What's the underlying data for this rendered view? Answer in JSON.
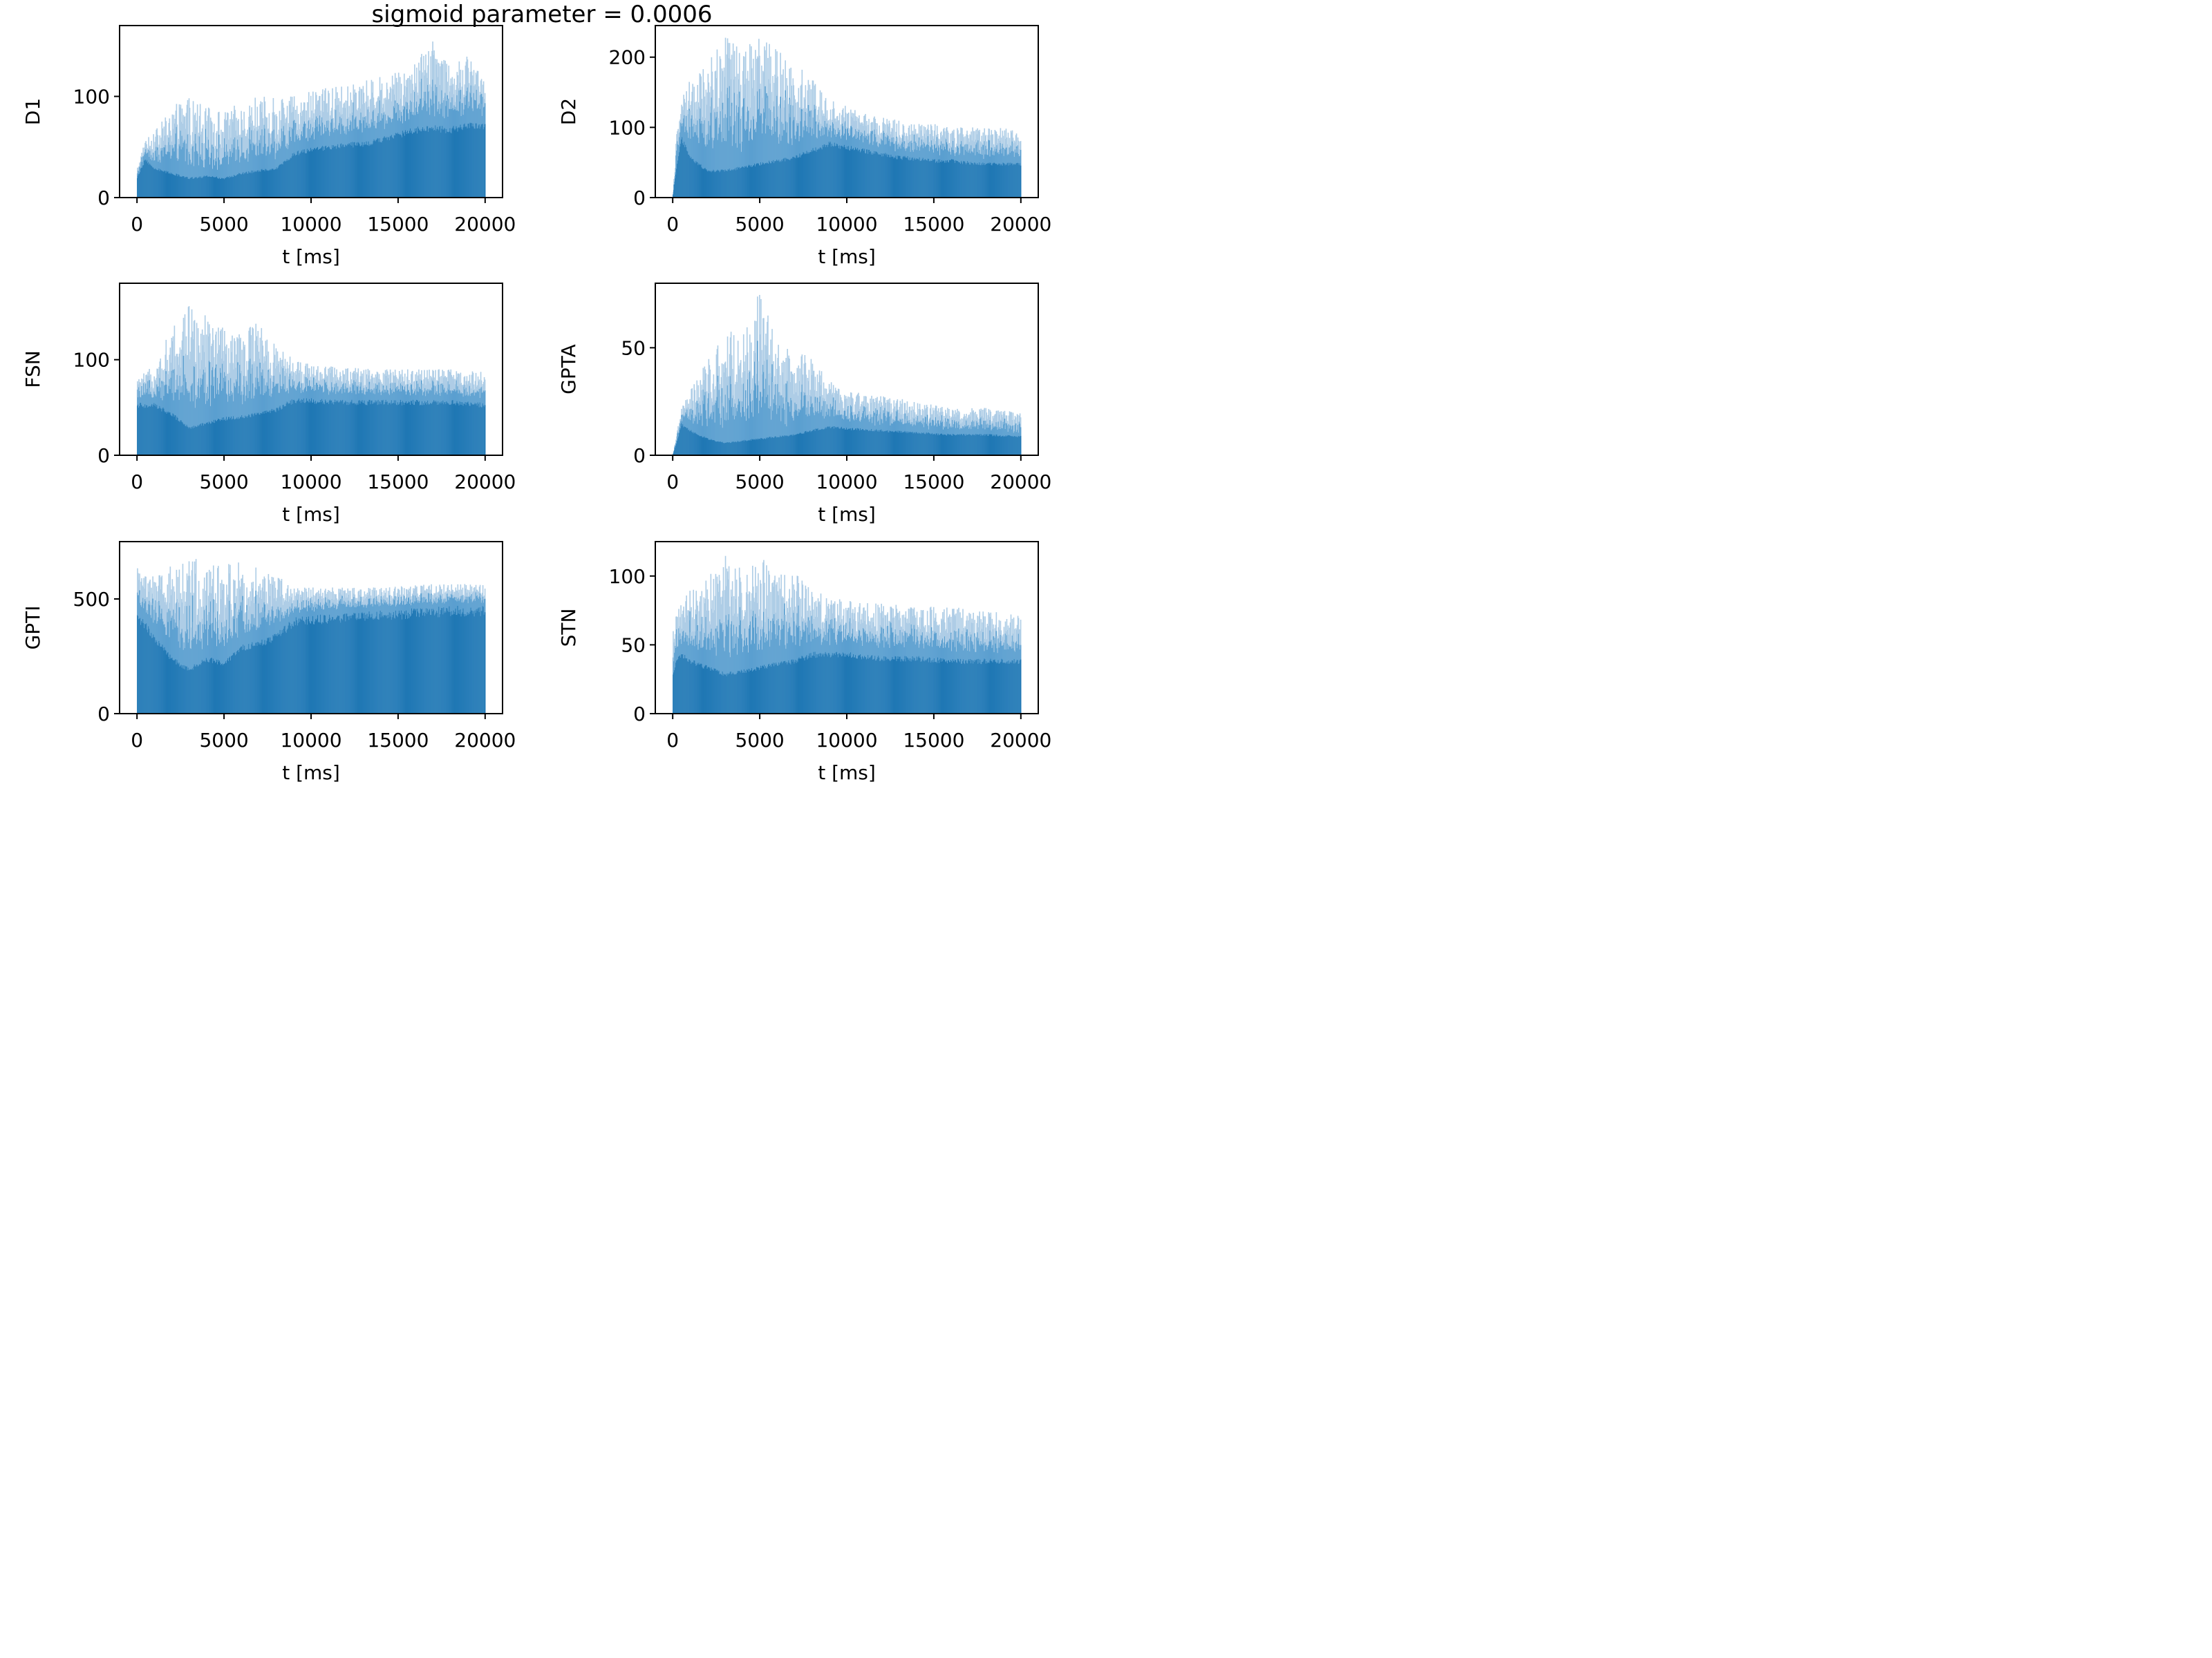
{
  "figure": {
    "title": "sigmoid parameter = 0.0006",
    "bar_color": "#1f77b4",
    "bar_light_color": "#aecde6",
    "bar_mid_color": "#5a9fd0"
  },
  "chart_data": [
    {
      "type": "histogram",
      "ylabel": "D1",
      "xlabel": "t [ms]",
      "xlim": [
        -1000,
        21000
      ],
      "ylim": [
        0,
        170
      ],
      "xticks": [
        0,
        5000,
        10000,
        15000,
        20000
      ],
      "xtick_labels": [
        "0",
        "5000",
        "10000",
        "15000",
        "20000"
      ],
      "yticks": [
        0,
        100
      ],
      "ytick_labels": [
        "0",
        "100"
      ],
      "envelope": {
        "t": [
          0,
          500,
          1000,
          2000,
          3000,
          4000,
          5000,
          6000,
          7000,
          8000,
          9000,
          10000,
          11000,
          12000,
          13000,
          14000,
          15000,
          16000,
          17000,
          18000,
          19000,
          20000
        ],
        "base": [
          20,
          40,
          30,
          25,
          20,
          22,
          20,
          25,
          28,
          30,
          45,
          50,
          52,
          55,
          55,
          60,
          65,
          70,
          72,
          70,
          75,
          75
        ],
        "peak": [
          30,
          60,
          65,
          90,
          100,
          90,
          85,
          95,
          100,
          100,
          100,
          105,
          110,
          110,
          115,
          120,
          125,
          135,
          160,
          130,
          140,
          120
        ]
      }
    },
    {
      "type": "histogram",
      "ylabel": "D2",
      "xlabel": "t [ms]",
      "xlim": [
        -1000,
        21000
      ],
      "ylim": [
        0,
        245
      ],
      "xticks": [
        0,
        5000,
        10000,
        15000,
        20000
      ],
      "xtick_labels": [
        "0",
        "5000",
        "10000",
        "15000",
        "20000"
      ],
      "yticks": [
        0,
        100,
        200
      ],
      "ytick_labels": [
        "0",
        "100",
        "200"
      ],
      "envelope": {
        "t": [
          0,
          200,
          500,
          1000,
          2000,
          3000,
          4000,
          5000,
          6000,
          7000,
          8000,
          9000,
          10000,
          11000,
          12000,
          13000,
          14000,
          15000,
          16000,
          17000,
          18000,
          19000,
          20000
        ],
        "base": [
          0,
          40,
          90,
          60,
          40,
          40,
          45,
          50,
          55,
          60,
          70,
          80,
          75,
          70,
          65,
          60,
          58,
          55,
          55,
          52,
          50,
          50,
          50
        ],
        "peak": [
          0,
          90,
          140,
          170,
          200,
          230,
          215,
          230,
          210,
          195,
          170,
          140,
          130,
          120,
          115,
          110,
          105,
          105,
          100,
          100,
          100,
          100,
          95
        ]
      }
    },
    {
      "type": "histogram",
      "ylabel": "FSN",
      "xlabel": "t [ms]",
      "xlim": [
        -1000,
        21000
      ],
      "ylim": [
        0,
        180
      ],
      "xticks": [
        0,
        5000,
        10000,
        15000,
        20000
      ],
      "xtick_labels": [
        "0",
        "5000",
        "10000",
        "15000",
        "20000"
      ],
      "yticks": [
        0,
        100
      ],
      "ytick_labels": [
        "0",
        "100"
      ],
      "envelope": {
        "t": [
          0,
          1000,
          2000,
          3000,
          4000,
          5000,
          6000,
          7000,
          8000,
          9000,
          10000,
          12000,
          14000,
          16000,
          18000,
          20000
        ],
        "base": [
          55,
          55,
          45,
          30,
          35,
          40,
          42,
          45,
          50,
          60,
          60,
          58,
          58,
          58,
          58,
          55
        ],
        "peak": [
          80,
          95,
          135,
          160,
          145,
          135,
          130,
          140,
          115,
          100,
          95,
          92,
          90,
          90,
          90,
          88
        ]
      }
    },
    {
      "type": "histogram",
      "ylabel": "GPTA",
      "xlabel": "t [ms]",
      "xlim": [
        -1000,
        21000
      ],
      "ylim": [
        0,
        80
      ],
      "xticks": [
        0,
        5000,
        10000,
        15000,
        20000
      ],
      "xtick_labels": [
        "0",
        "5000",
        "10000",
        "15000",
        "20000"
      ],
      "yticks": [
        0,
        50
      ],
      "ytick_labels": [
        "0",
        "50"
      ],
      "envelope": {
        "t": [
          0,
          200,
          500,
          1000,
          2000,
          3000,
          4000,
          5000,
          6000,
          7000,
          8000,
          9000,
          10000,
          12000,
          14000,
          16000,
          18000,
          20000
        ],
        "base": [
          0,
          5,
          15,
          12,
          8,
          6,
          7,
          8,
          9,
          10,
          12,
          14,
          13,
          12,
          11,
          10,
          10,
          9
        ],
        "peak": [
          0,
          10,
          22,
          30,
          45,
          60,
          55,
          77,
          55,
          50,
          45,
          35,
          30,
          28,
          25,
          22,
          22,
          20
        ]
      }
    },
    {
      "type": "histogram",
      "ylabel": "GPTI",
      "xlabel": "t [ms]",
      "xlim": [
        -1000,
        21000
      ],
      "ylim": [
        0,
        750
      ],
      "xticks": [
        0,
        5000,
        10000,
        15000,
        20000
      ],
      "xtick_labels": [
        "0",
        "5000",
        "10000",
        "15000",
        "20000"
      ],
      "yticks": [
        0,
        500
      ],
      "ytick_labels": [
        "0",
        "500"
      ],
      "envelope": {
        "t": [
          0,
          500,
          1000,
          2000,
          3000,
          4000,
          5000,
          6000,
          7000,
          8000,
          9000,
          10000,
          12000,
          14000,
          16000,
          18000,
          20000
        ],
        "base": [
          450,
          400,
          350,
          250,
          200,
          250,
          230,
          300,
          320,
          350,
          420,
          430,
          440,
          450,
          460,
          470,
          470
        ],
        "peak": [
          650,
          600,
          600,
          690,
          680,
          670,
          670,
          660,
          640,
          600,
          560,
          550,
          550,
          550,
          560,
          570,
          560
        ]
      }
    },
    {
      "type": "histogram",
      "ylabel": "STN",
      "xlabel": "t [ms]",
      "xlim": [
        -1000,
        21000
      ],
      "ylim": [
        0,
        125
      ],
      "xticks": [
        0,
        5000,
        10000,
        15000,
        20000
      ],
      "xtick_labels": [
        "0",
        "5000",
        "10000",
        "15000",
        "20000"
      ],
      "yticks": [
        0,
        50,
        100
      ],
      "ytick_labels": [
        "0",
        "50",
        "100"
      ],
      "envelope": {
        "t": [
          0,
          200,
          500,
          1000,
          2000,
          3000,
          4000,
          5000,
          6000,
          7000,
          8000,
          9000,
          10000,
          12000,
          14000,
          16000,
          18000,
          20000
        ],
        "base": [
          30,
          40,
          45,
          40,
          35,
          30,
          32,
          35,
          38,
          40,
          45,
          45,
          45,
          42,
          42,
          40,
          40,
          40
        ],
        "peak": [
          60,
          75,
          85,
          90,
          100,
          118,
          105,
          115,
          100,
          105,
          90,
          85,
          82,
          80,
          78,
          78,
          75,
          72
        ]
      }
    }
  ]
}
